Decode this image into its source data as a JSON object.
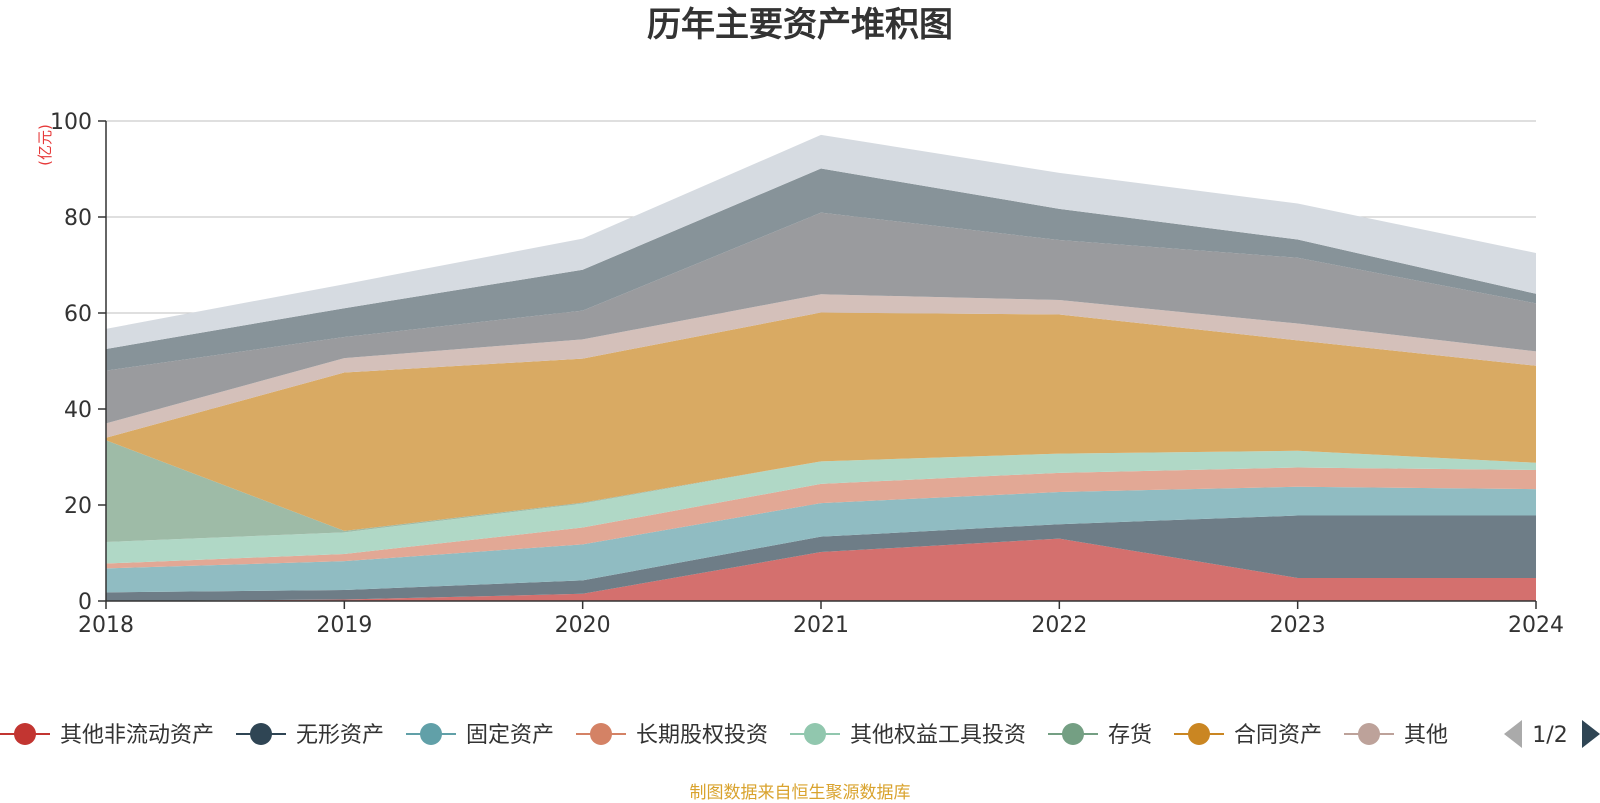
{
  "chart_data": {
    "type": "area",
    "stacked": true,
    "title": "历年主要资产堆积图",
    "ylabel": "(亿元)",
    "xlabel": "",
    "x": [
      "2018",
      "2019",
      "2020",
      "2021",
      "2022",
      "2023",
      "2024"
    ],
    "ylim": [
      0,
      100
    ],
    "yticks": [
      0,
      20,
      40,
      60,
      80,
      100
    ],
    "grid": true,
    "legend_position": "bottom",
    "legend_page": "1/2",
    "series": [
      {
        "name": "其他非流动资产",
        "color": "#c23531",
        "fill": "#d4706e",
        "values": [
          0,
          0.3,
          1.5,
          10.2,
          13,
          4.8,
          4.8
        ]
      },
      {
        "name": "无形资产",
        "color": "#2f4554",
        "fill": "#6e7d87",
        "values": [
          1.8,
          2,
          2.8,
          3.2,
          3,
          13,
          13
        ]
      },
      {
        "name": "固定资产",
        "color": "#61a0a8",
        "fill": "#90bcc2",
        "values": [
          5,
          6,
          7.5,
          7,
          6.7,
          6,
          5.5
        ]
      },
      {
        "name": "长期股权投资",
        "color": "#d48265",
        "fill": "#e2a895",
        "values": [
          1,
          1.5,
          3.5,
          4,
          4,
          4,
          4
        ]
      },
      {
        "name": "其他权益工具投资",
        "color": "#91c7ae",
        "fill": "#b0d8c6",
        "values": [
          4.5,
          4.5,
          5,
          4.7,
          4,
          3.5,
          1.5
        ]
      },
      {
        "name": "存货",
        "color": "#749f83",
        "fill": "#9ebba7",
        "values": [
          21.2,
          0.3,
          0.2,
          0,
          0,
          0,
          0
        ]
      },
      {
        "name": "合同资产",
        "color": "#ca8622",
        "fill": "#d9aa63",
        "values": [
          0.5,
          33,
          30,
          31,
          29,
          23,
          20.2
        ]
      },
      {
        "name": "其他",
        "color": "#bda29a",
        "fill": "#d4c0ba",
        "values": [
          3,
          3,
          4,
          3.8,
          3,
          3.5,
          3
        ]
      },
      {
        "name": "",
        "color": "#6e7074",
        "fill": "#9a9b9e",
        "values": [
          11,
          4.4,
          6,
          17,
          12.5,
          13.7,
          10
        ]
      },
      {
        "name": "",
        "color": "#546570",
        "fill": "#879399",
        "values": [
          4.5,
          6,
          8.5,
          9.2,
          6.5,
          3.8,
          2
        ]
      },
      {
        "name": "",
        "color": "#c4ccd3",
        "fill": "#d6dbe1",
        "values": [
          4.2,
          5,
          6.5,
          7,
          7.5,
          7.5,
          8.5
        ]
      }
    ]
  },
  "footer": {
    "source": "制图数据来自恒生聚源数据库"
  }
}
